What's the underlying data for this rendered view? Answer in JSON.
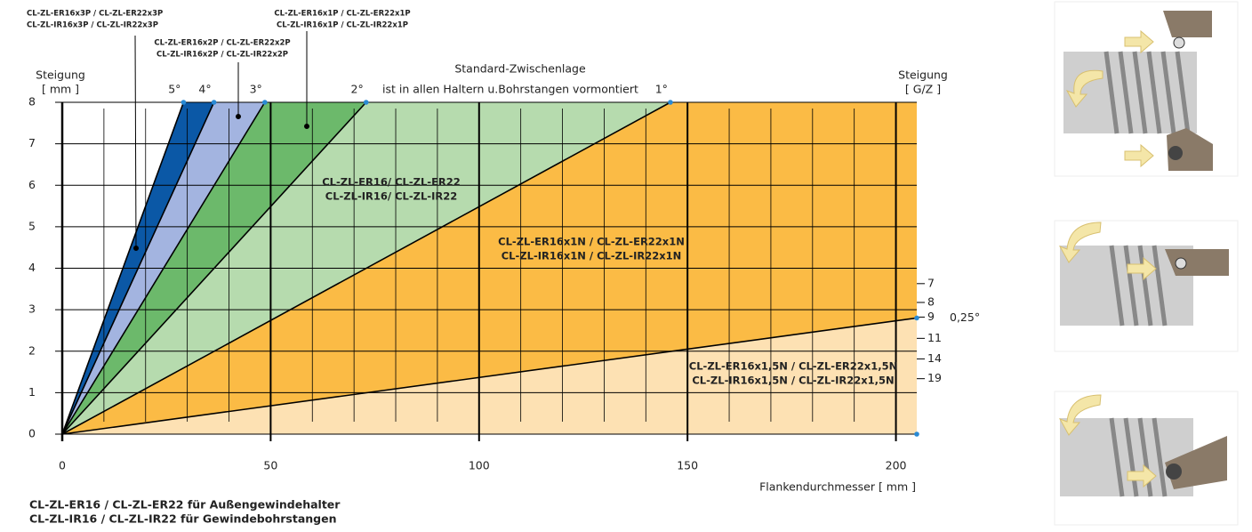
{
  "chart_data": {
    "type": "area",
    "header": "Standard-Zwischenlage",
    "header_note": "ist in allen Haltern u.Bohrstangen vormontiert",
    "y_label": "Steigung",
    "y_unit": "[ mm ]",
    "y2_label": "Steigung",
    "y2_unit": "[ G/Z ]",
    "x_label": "Flankendurchmesser [ mm ]",
    "xlim": [
      0,
      205
    ],
    "ylim": [
      0,
      8
    ],
    "xticks": [
      0,
      50,
      100,
      150,
      200
    ],
    "yticks": [
      0,
      1,
      2,
      3,
      4,
      5,
      6,
      7,
      8
    ],
    "y2ticks": [
      7,
      8,
      9,
      11,
      14,
      19
    ],
    "grid": true,
    "lines": [
      {
        "name": "5°",
        "x": [
          0,
          29.1
        ],
        "y": [
          0,
          8
        ],
        "color": "#0b58a6"
      },
      {
        "name": "4°",
        "x": [
          0,
          36.4
        ],
        "y": [
          0,
          8
        ],
        "color": "#a3b4e0"
      },
      {
        "name": "3°",
        "x": [
          0,
          48.6
        ],
        "y": [
          0,
          8
        ],
        "color": "#6cb96b"
      },
      {
        "name": "2°",
        "x": [
          0,
          72.9
        ],
        "y": [
          0,
          8
        ],
        "color": "#b6dbae"
      },
      {
        "name": "1°",
        "x": [
          0,
          145.9
        ],
        "y": [
          0,
          8
        ],
        "color": "#fbbb45"
      },
      {
        "name": "0,25°",
        "x": [
          0,
          205
        ],
        "y": [
          0,
          2.8
        ],
        "color": "#fde1b3"
      }
    ],
    "annotations": [
      {
        "lines": [
          "CL-ZL-ER16x3P / CL-ZL-ER22x3P",
          "CL-ZL-IR16x3P / CL-ZL-IR22x3P"
        ]
      },
      {
        "lines": [
          "CL-ZL-ER16x2P / CL-ZL-ER22x2P",
          "CL-ZL-IR16x2P / CL-ZL-IR22x2P"
        ]
      },
      {
        "lines": [
          "CL-ZL-ER16x1P / CL-ZL-ER22x1P",
          "CL-ZL-IR16x1P / CL-ZL-IR22x1P"
        ]
      },
      {
        "lines": [
          "CL-ZL-ER16/ CL-ZL-ER22",
          "CL-ZL-IR16/ CL-ZL-IR22"
        ]
      },
      {
        "lines": [
          "CL-ZL-ER16x1N / CL-ZL-ER22x1N",
          "CL-ZL-IR16x1N / CL-ZL-IR22x1N"
        ]
      },
      {
        "lines": [
          "CL-ZL-ER16x1,5N / CL-ZL-ER22x1,5N",
          "CL-ZL-IR16x1,5N / CL-ZL-IR22x1,5N"
        ]
      }
    ],
    "footnotes": [
      "CL-ZL-ER16 / CL-ZL-ER22 für Außengewindehalter",
      "CL-ZL-IR16 / CL-ZL-IR22 für Gewindebohrstangen"
    ]
  }
}
